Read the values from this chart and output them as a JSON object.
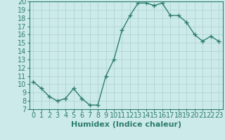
{
  "x": [
    0,
    1,
    2,
    3,
    4,
    5,
    6,
    7,
    8,
    9,
    10,
    11,
    12,
    13,
    14,
    15,
    16,
    17,
    18,
    19,
    20,
    21,
    22,
    23
  ],
  "y": [
    10.3,
    9.5,
    8.5,
    8.0,
    8.3,
    9.5,
    8.3,
    7.5,
    7.5,
    11.0,
    13.0,
    16.5,
    18.3,
    19.8,
    19.8,
    19.5,
    19.8,
    18.3,
    18.3,
    17.5,
    16.0,
    15.2,
    15.8,
    15.2
  ],
  "line_color": "#2e7d6e",
  "marker": "+",
  "marker_size": 4,
  "bg_color": "#cceaea",
  "grid_color": "#b0d4d4",
  "xlabel": "Humidex (Indice chaleur)",
  "ylim": [
    7,
    20
  ],
  "xlim": [
    -0.5,
    23.5
  ],
  "yticks": [
    7,
    8,
    9,
    10,
    11,
    12,
    13,
    14,
    15,
    16,
    17,
    18,
    19,
    20
  ],
  "xticks": [
    0,
    1,
    2,
    3,
    4,
    5,
    6,
    7,
    8,
    9,
    10,
    11,
    12,
    13,
    14,
    15,
    16,
    17,
    18,
    19,
    20,
    21,
    22,
    23
  ],
  "xlabel_fontsize": 8,
  "tick_fontsize": 7,
  "linewidth": 1.0,
  "marker_color": "#2e7d6e"
}
